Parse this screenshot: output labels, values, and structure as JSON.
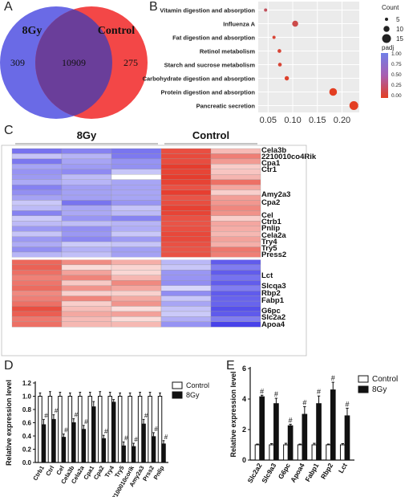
{
  "panel_letters": [
    "A",
    "B",
    "C",
    "D",
    "E"
  ],
  "venn": {
    "left_label": "8Gy",
    "right_label": "Control",
    "left_only": "309",
    "overlap": "10909",
    "right_only": "275",
    "left_color": "#6a6ae6",
    "right_color": "#f34747",
    "overlap_color": "#6a3e9a"
  },
  "chart_data": [
    {
      "type": "scatter",
      "panel": "B",
      "categories": [
        "Vitamin digestion and absorption",
        "Influenza A",
        "Fat digestion and absorption",
        "Retinol metabolism",
        "Starch and sucrose metabolism",
        "Carbohydrate digestion and absorption",
        "Protein digestion and absorption",
        "Pancreatic secretion"
      ],
      "x": [
        0.045,
        0.105,
        0.062,
        0.073,
        0.074,
        0.088,
        0.182,
        0.224
      ],
      "count": [
        5,
        10,
        5,
        6,
        6,
        7,
        13,
        15
      ],
      "padj": [
        0.3,
        0.2,
        0.1,
        0.1,
        0.1,
        0.05,
        0.0,
        0.0
      ],
      "xticks": [
        "0.05",
        "0.10",
        "0.15",
        "0.20"
      ],
      "xlim": [
        0.03,
        0.235
      ],
      "size_legend_title": "Count",
      "size_legend": [
        "5",
        "10",
        "15"
      ],
      "color_legend_title": "padj",
      "color_legend_ticks": [
        "1.00",
        "0.75",
        "0.50",
        "0.25",
        "0.00"
      ],
      "colors": [
        "#e33e22",
        "#6f7fe8"
      ]
    },
    {
      "type": "heatmap",
      "panel": "C",
      "groups": [
        "8Gy",
        "Control"
      ],
      "row_labels": [
        "Cela3b",
        "2210010co4Rik",
        "Cpa1",
        "Ctr1",
        "Amy2a3",
        "Cpa2",
        "Cel",
        "Ctrb1",
        "Pnlip",
        "Cela2a",
        "Try4",
        "Try5",
        "Press2",
        "Lct",
        "Slcqa3",
        "Rbp2",
        "Fabp1",
        "G6pc",
        "Slc2a2",
        "Apoa4"
      ],
      "colors": [
        "#3c36e8",
        "#ffffff",
        "#e63a2b"
      ]
    },
    {
      "type": "bar",
      "panel": "D",
      "categories": [
        "Ctrb1",
        "Ctrl",
        "Cel",
        "Cela3b",
        "Cela2a",
        "Cpa1",
        "Cpa2",
        "Try4",
        "Try5",
        "2100010corik",
        "Amy2a3",
        "Prss2",
        "Pnlip"
      ],
      "series": [
        {
          "name": "Control",
          "values": [
            1.0,
            1.0,
            1.0,
            1.0,
            1.0,
            1.0,
            1.0,
            1.0,
            1.0,
            1.0,
            1.0,
            1.0,
            1.0
          ],
          "errors": [
            0.05,
            0.07,
            0.06,
            0.05,
            0.06,
            0.06,
            0.07,
            0.06,
            0.05,
            0.05,
            0.06,
            0.06,
            0.05
          ]
        },
        {
          "name": "8Gy",
          "values": [
            0.57,
            0.65,
            0.38,
            0.6,
            0.5,
            0.84,
            0.36,
            0.91,
            0.25,
            0.24,
            0.58,
            0.39,
            0.28
          ],
          "errors": [
            0.08,
            0.07,
            0.05,
            0.06,
            0.06,
            0.08,
            0.05,
            0.04,
            0.06,
            0.05,
            0.07,
            0.06,
            0.05
          ]
        }
      ],
      "annotation": "#",
      "significant": [
        true,
        true,
        true,
        true,
        true,
        false,
        true,
        false,
        true,
        true,
        true,
        true,
        true
      ],
      "ylabel": "Relative expression level",
      "yticks": [
        "0.0",
        "0.2",
        "0.4",
        "0.6",
        "0.8",
        "1.0",
        "1.2"
      ],
      "ylim": [
        0,
        1.2
      ],
      "legend_position": "top-right"
    },
    {
      "type": "bar",
      "panel": "E",
      "categories": [
        "Slc2a2",
        "Slc9a3",
        "G6pc",
        "Apoa4",
        "Fabp1",
        "Rbp2",
        "Lct"
      ],
      "series": [
        {
          "name": "Control",
          "values": [
            1.0,
            1.0,
            1.0,
            1.0,
            1.0,
            1.0,
            1.0
          ],
          "errors": [
            0.05,
            0.08,
            0.1,
            0.05,
            0.1,
            0.05,
            0.08
          ]
        },
        {
          "name": "8Gy",
          "values": [
            4.15,
            3.7,
            2.25,
            3.0,
            3.7,
            4.6,
            2.9
          ],
          "errors": [
            0.1,
            0.35,
            0.1,
            0.5,
            0.5,
            0.5,
            0.5
          ]
        }
      ],
      "annotation": "#",
      "significant": [
        true,
        true,
        true,
        true,
        true,
        true,
        true
      ],
      "ylabel": "Relative expression level",
      "yticks": [
        "0",
        "2",
        "4",
        "6"
      ],
      "ylim": [
        0,
        6
      ],
      "legend_position": "top-right"
    }
  ]
}
